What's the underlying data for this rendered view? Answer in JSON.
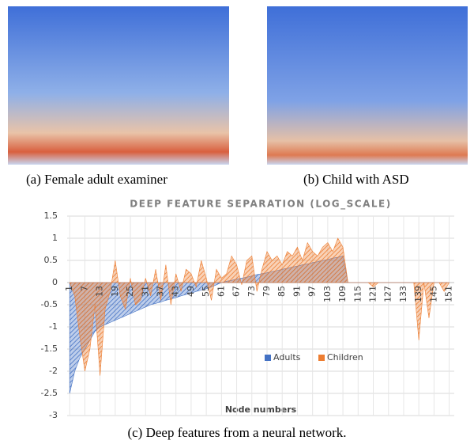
{
  "subfigures": [
    {
      "caption": "(a) Female adult examiner"
    },
    {
      "caption": "(b) Child with ASD"
    }
  ],
  "caption": "(c) Deep features from a neural network.",
  "chart_data": {
    "type": "area",
    "title": "DEEP FEATURE SEPARATION (LOG_SCALE)",
    "x_label": "Node numbers",
    "x": [
      1,
      3,
      5,
      7,
      9,
      11,
      13,
      15,
      17,
      19,
      21,
      23,
      25,
      27,
      29,
      31,
      33,
      35,
      37,
      39,
      41,
      43,
      45,
      47,
      49,
      51,
      53,
      55,
      57,
      59,
      61,
      63,
      65,
      67,
      69,
      71,
      73,
      75,
      77,
      79,
      81,
      83,
      85,
      87,
      89,
      91,
      93,
      95,
      97,
      99,
      101,
      103,
      105,
      107,
      109,
      111,
      113,
      115,
      117,
      119,
      121,
      123,
      125,
      127,
      129,
      131,
      133,
      135,
      137,
      139,
      141,
      143,
      145,
      147,
      149,
      151
    ],
    "series": [
      {
        "name": "Adults",
        "color": "#4472c4",
        "values": [
          -2.5,
          -2.0,
          -1.7,
          -1.5,
          -1.3,
          -1.1,
          -1.0,
          -0.95,
          -0.9,
          -0.85,
          -0.8,
          -0.75,
          -0.7,
          -0.65,
          -0.6,
          -0.55,
          -0.5,
          -0.47,
          -0.44,
          -0.4,
          -0.37,
          -0.34,
          -0.3,
          -0.27,
          -0.24,
          -0.2,
          -0.17,
          -0.14,
          -0.1,
          -0.05,
          0,
          0.03,
          0.05,
          0.08,
          0.1,
          0.12,
          0.15,
          0.18,
          0.2,
          0.22,
          0.25,
          0.27,
          0.3,
          0.32,
          0.35,
          0.37,
          0.4,
          0.42,
          0.45,
          0.47,
          0.5,
          0.52,
          0.55,
          0.57,
          0.6,
          0,
          0,
          0,
          0,
          0,
          0,
          0,
          0,
          0,
          0,
          0,
          0,
          0,
          0,
          0,
          0,
          0,
          0,
          0,
          0,
          0
        ]
      },
      {
        "name": "Children",
        "color": "#ed7d31",
        "values": [
          0,
          -0.3,
          -1.2,
          -2.0,
          -1.5,
          -0.5,
          -2.1,
          -0.6,
          -0.2,
          0.5,
          -0.3,
          -0.6,
          0.1,
          -0.5,
          -0.4,
          0.1,
          -0.3,
          0.3,
          -0.4,
          0.4,
          -0.5,
          0.2,
          -0.2,
          0.3,
          0.2,
          -0.1,
          0.5,
          0.1,
          -0.4,
          0.3,
          0.1,
          0.2,
          0.6,
          0.4,
          -0.05,
          0.5,
          0.6,
          -0.2,
          0.3,
          0.7,
          0.5,
          0.6,
          0.4,
          0.7,
          0.6,
          0.8,
          0.5,
          0.9,
          0.7,
          0.6,
          0.8,
          0.9,
          0.7,
          1.0,
          0.8,
          0,
          0,
          0,
          0,
          0,
          -0.1,
          0,
          0,
          0,
          0,
          0,
          0,
          0,
          0,
          -1.3,
          0,
          -0.8,
          0,
          0,
          -0.2,
          0
        ]
      }
    ],
    "xlim": [
      0,
      153
    ],
    "xticks": [
      1,
      7,
      13,
      19,
      25,
      31,
      37,
      43,
      49,
      55,
      61,
      67,
      73,
      79,
      85,
      91,
      97,
      103,
      109,
      115,
      121,
      127,
      133,
      139,
      145,
      151
    ],
    "ylim": [
      -3,
      1.5
    ],
    "yticks": [
      -3,
      -2.5,
      -2,
      -1.5,
      -1,
      -0.5,
      0,
      0.5,
      1,
      1.5
    ],
    "grid": true
  }
}
